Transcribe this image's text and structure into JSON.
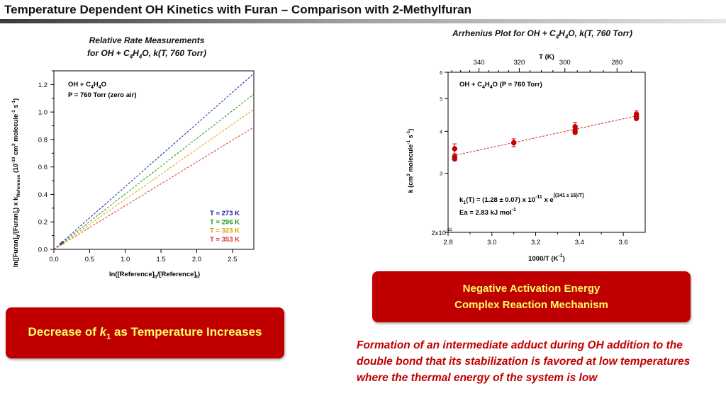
{
  "header": {
    "title": "Temperature Dependent OH Kinetics with Furan – Comparison with 2-Methylfuran"
  },
  "left_caption": {
    "line1": "Relative Rate Measurements",
    "line2": "for OH + C4H4O, k(T, 760 Torr)"
  },
  "right_caption": {
    "line1": "Arrhenius Plot for OH + C4H4O, k(T, 760 Torr)"
  },
  "box_left": {
    "text_pre": "Decrease of ",
    "k": "k",
    "sub": "1",
    "text_post": " as Temperature Increases"
  },
  "box_right": {
    "line1": "Negative Activation Energy",
    "line2": "Complex Reaction Mechanism"
  },
  "note": {
    "text": "Formation of an intermediate adduct during OH addition to the double bond that its stabilization is favored at low temperatures where the thermal energy of the system is low"
  },
  "colors": {
    "accent_red": "#c00000",
    "box_text": "#ffff66",
    "t273": "#1a1ab0",
    "t296": "#1a9a1a",
    "t323": "#e0a000",
    "t353": "#e03030"
  },
  "chart_data": [
    {
      "type": "line",
      "xlabel": "ln([Reference]0/[Reference]t)",
      "ylabel": "ln([Furan]0/[Furan]t) x kReference (10^-10 cm3 molecule-1 s-1)",
      "annotation": [
        "OH + C4H4O",
        "P = 760 Torr (zero air)"
      ],
      "xlim": [
        0,
        2.8
      ],
      "ylim": [
        0,
        1.3
      ],
      "x_ticks": [
        "0.0",
        "0.5",
        "1.0",
        "1.5",
        "2.0",
        "2.5"
      ],
      "y_ticks": [
        "0.0",
        "0.2",
        "0.4",
        "0.6",
        "0.8",
        "1.0",
        "1.2"
      ],
      "series": [
        {
          "name": "T = 273 K",
          "color": "#1a1ab0",
          "x": [
            0,
            2.8
          ],
          "y": [
            0,
            1.28
          ]
        },
        {
          "name": "T = 296 K",
          "color": "#1a9a1a",
          "x": [
            0,
            2.8
          ],
          "y": [
            0,
            1.13
          ]
        },
        {
          "name": "T = 323 K",
          "color": "#e0a000",
          "x": [
            0,
            2.8
          ],
          "y": [
            0,
            1.02
          ]
        },
        {
          "name": "T = 353 K",
          "color": "#e03030",
          "x": [
            0,
            2.8
          ],
          "y": [
            0,
            0.89
          ]
        }
      ],
      "legend": "bottom-right"
    },
    {
      "type": "scatter",
      "scale_y": "log",
      "xlabel": "1000/T (K-1)",
      "ylabel": "k (cm3 molecule-1 s-1)",
      "top_axis_label": "T (K)",
      "top_ticks": [
        340,
        320,
        300,
        280
      ],
      "xlim": [
        2.8,
        3.7
      ],
      "ylim": [
        2,
        6
      ],
      "x_ticks": [
        "2.8",
        "3.0",
        "3.2",
        "3.4",
        "3.6"
      ],
      "y_ticks": [
        "2x10-11",
        "3",
        "4",
        "5",
        "6"
      ],
      "annotation": "OH + C4H4O (P = 760 Torr)",
      "fit_text": "k1(T) = (1.28 ± 0.07) x 10-11 x e[(341 ± 16)/T]",
      "ea_text": "Ea = 2.83 kJ mol-1",
      "points": [
        {
          "x": 2.83,
          "y": 3.55,
          "err": 0.12
        },
        {
          "x": 2.83,
          "y": 3.36
        },
        {
          "x": 2.83,
          "y": 3.31
        },
        {
          "x": 3.1,
          "y": 3.7,
          "err": 0.1
        },
        {
          "x": 3.38,
          "y": 4.13,
          "err": 0.12
        },
        {
          "x": 3.38,
          "y": 4.03
        },
        {
          "x": 3.38,
          "y": 3.97
        },
        {
          "x": 3.66,
          "y": 4.5,
          "err": 0.1
        },
        {
          "x": 3.66,
          "y": 4.43
        },
        {
          "x": 3.66,
          "y": 4.37
        }
      ],
      "fit_line": {
        "x": [
          2.82,
          3.67
        ],
        "y": [
          3.38,
          4.46
        ]
      }
    }
  ]
}
